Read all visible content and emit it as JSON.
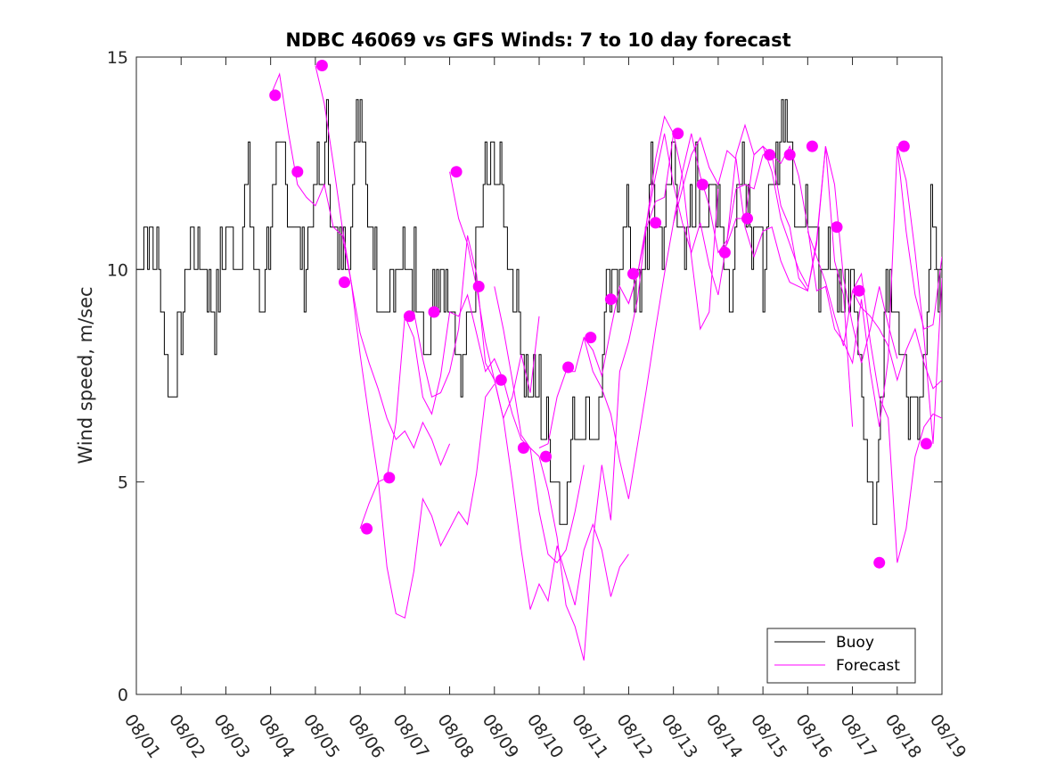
{
  "chart_data": {
    "type": "line",
    "title": "NDBC 46069 vs GFS Winds: 7 to 10 day forecast",
    "xlabel": "",
    "ylabel": "Wind speed, m/sec",
    "xlim": [
      0,
      18
    ],
    "ylim": [
      0,
      15
    ],
    "x_ticks": [
      0,
      1,
      2,
      3,
      4,
      5,
      6,
      7,
      8,
      9,
      10,
      11,
      12,
      13,
      14,
      15,
      16,
      17,
      18
    ],
    "x_tick_labels": [
      "08/01",
      "08/02",
      "08/03",
      "08/04",
      "08/05",
      "08/06",
      "08/07",
      "08/08",
      "08/09",
      "08/10",
      "08/11",
      "08/12",
      "08/13",
      "08/14",
      "08/15",
      "08/16",
      "08/17",
      "08/18",
      "08/19"
    ],
    "y_ticks": [
      0,
      5,
      10,
      15
    ],
    "y_tick_labels": [
      "0",
      "5",
      "10",
      "15"
    ],
    "legend": {
      "position": "bottom-right",
      "entries": [
        {
          "label": "Buoy",
          "color": "#000000"
        },
        {
          "label": "Forecast",
          "color": "#ff00ff"
        }
      ]
    },
    "series": [
      {
        "name": "Buoy",
        "color": "#000000",
        "x": [
          0,
          0.25,
          0.5,
          0.75,
          1.0,
          1.25,
          1.5,
          1.75,
          2.0,
          2.25,
          2.5,
          2.75,
          3.0,
          3.25,
          3.5,
          3.75,
          4.0,
          4.25,
          4.5,
          4.75,
          5.0,
          5.25,
          5.5,
          5.75,
          6.0,
          6.25,
          6.5,
          6.75,
          7.0,
          7.25,
          7.5,
          7.75,
          8.0,
          8.25,
          8.5,
          8.75,
          9.0,
          9.25,
          9.5,
          9.75,
          10.0,
          10.25,
          10.5,
          10.75,
          11.0,
          11.25,
          11.5,
          11.75,
          12.0,
          12.25,
          12.5,
          12.75,
          13.0,
          13.25,
          13.5,
          13.75,
          14.0,
          14.25,
          14.5,
          14.75,
          15.0,
          15.25,
          15.5,
          15.75,
          16.0,
          16.25,
          16.5,
          16.75,
          17.0,
          17.25,
          17.5,
          17.75,
          18.0
        ],
        "y": [
          10,
          11,
          10,
          7,
          9,
          11,
          10,
          9,
          11,
          10,
          12,
          9,
          11,
          13,
          11,
          10,
          12,
          13,
          10,
          11,
          14,
          11,
          9,
          10,
          10,
          10,
          8,
          10,
          9,
          7,
          9,
          12,
          13,
          11,
          9,
          7,
          7,
          6,
          4,
          6,
          7,
          6,
          9,
          10,
          11,
          9,
          12,
          11,
          13,
          10,
          12,
          11,
          12,
          9,
          13,
          11,
          10,
          12,
          14,
          11,
          12,
          10,
          11,
          9,
          10,
          6,
          4,
          10,
          9,
          7,
          6,
          11,
          9
        ]
      },
      {
        "name": "Forecast",
        "color": "#ff00ff",
        "segments": [
          {
            "x": [
              3.0,
              3.2,
              3.4,
              3.6,
              3.8,
              4.0,
              4.2,
              4.4,
              4.6,
              4.8,
              5.0,
              5.2,
              5.4,
              5.6,
              5.8,
              6.0,
              6.2,
              6.4,
              6.6,
              6.8,
              7.0
            ],
            "y": [
              14.1,
              14.6,
              13.2,
              12.0,
              11.7,
              11.5,
              12.0,
              11.0,
              10.8,
              9.7,
              8.5,
              7.8,
              7.2,
              6.5,
              6.0,
              6.2,
              5.8,
              6.4,
              6.0,
              5.4,
              5.9
            ]
          },
          {
            "x": [
              4.0,
              4.2,
              4.4,
              4.6,
              4.8,
              5.0,
              5.2,
              5.4,
              5.6,
              5.8,
              6.0,
              6.2,
              6.4,
              6.6,
              6.8,
              7.0,
              7.2,
              7.4,
              7.6,
              7.8,
              8.0
            ],
            "y": [
              14.8,
              13.9,
              12.5,
              11.0,
              9.7,
              8.0,
              6.5,
              5.1,
              3.0,
              1.9,
              1.8,
              2.9,
              4.6,
              4.2,
              3.5,
              3.9,
              4.3,
              4.0,
              5.2,
              7.0,
              7.3
            ]
          },
          {
            "x": [
              5.0,
              5.2,
              5.4,
              5.6,
              5.8,
              6.0,
              6.2,
              6.4,
              6.6,
              6.8,
              7.0,
              7.2,
              7.4,
              7.6,
              7.8,
              8.0,
              8.2,
              8.4,
              8.6,
              8.8,
              9.0
            ],
            "y": [
              3.9,
              4.5,
              5.0,
              5.1,
              6.4,
              8.9,
              9.0,
              7.9,
              7.0,
              7.1,
              7.6,
              8.6,
              10.8,
              9.9,
              7.8,
              7.4,
              6.5,
              7.0,
              8.0,
              7.1,
              8.9
            ]
          },
          {
            "x": [
              6.0,
              6.2,
              6.4,
              6.6,
              6.8,
              7.0,
              7.2,
              7.4,
              7.6,
              7.8,
              8.0,
              8.2,
              8.4,
              8.6,
              8.8,
              9.0,
              9.2,
              9.4,
              9.6,
              9.8,
              10.0
            ],
            "y": [
              8.9,
              8.4,
              7.0,
              6.6,
              7.5,
              9.0,
              8.9,
              9.4,
              8.5,
              7.6,
              7.9,
              7.4,
              6.6,
              6.0,
              5.8,
              4.3,
              3.3,
              3.1,
              3.4,
              4.3,
              5.4
            ]
          },
          {
            "x": [
              7.0,
              7.2,
              7.4,
              7.6,
              7.8,
              8.0,
              8.2,
              8.4,
              8.6,
              8.8,
              9.0,
              9.2,
              9.4,
              9.6,
              9.8,
              10.0,
              10.2,
              10.4,
              10.6,
              10.8,
              11.0
            ],
            "y": [
              12.3,
              11.2,
              10.6,
              9.6,
              8.3,
              7.4,
              6.5,
              5.0,
              3.4,
              2.0,
              2.6,
              2.2,
              3.5,
              2.8,
              2.1,
              3.4,
              4.0,
              3.4,
              2.3,
              3.0,
              3.3
            ]
          },
          {
            "x": [
              8.0,
              8.2,
              8.4,
              8.6,
              8.8,
              9.0,
              9.2,
              9.4,
              9.6,
              9.8,
              10.0,
              10.2,
              10.4,
              10.6,
              10.8,
              11.0,
              11.2,
              11.4,
              11.6,
              11.8,
              12.0
            ],
            "y": [
              9.6,
              8.6,
              7.4,
              6.1,
              5.8,
              5.6,
              4.8,
              3.7,
              2.1,
              1.6,
              0.8,
              3.6,
              5.4,
              4.1,
              7.6,
              8.3,
              9.3,
              11.1,
              12.6,
              13.6,
              13.2
            ]
          },
          {
            "x": [
              9.0,
              9.2,
              9.4,
              9.6,
              9.8,
              10.0,
              10.2,
              10.4,
              10.6,
              10.8,
              11.0,
              11.2,
              11.4,
              11.6,
              11.8,
              12.0,
              12.2,
              12.4,
              12.6,
              12.8,
              13.0
            ],
            "y": [
              5.8,
              5.9,
              7.0,
              7.6,
              7.6,
              8.4,
              8.1,
              7.5,
              8.6,
              9.6,
              9.2,
              9.9,
              11.0,
              11.6,
              11.7,
              13.2,
              12.2,
              10.3,
              8.6,
              9.0,
              11.9
            ]
          },
          {
            "x": [
              10.0,
              10.2,
              10.4,
              10.6,
              10.8,
              11.0,
              11.2,
              11.4,
              11.6,
              11.8,
              12.0,
              12.2,
              12.4,
              12.6,
              12.8,
              13.0,
              13.2,
              13.4,
              13.6,
              13.8,
              14.0
            ],
            "y": [
              8.4,
              7.6,
              7.2,
              6.6,
              5.5,
              4.6,
              5.9,
              7.2,
              8.6,
              9.9,
              11.1,
              12.3,
              13.2,
              12.2,
              11.5,
              10.4,
              10.7,
              11.9,
              12.0,
              11.9,
              12.7
            ]
          },
          {
            "x": [
              11.0,
              11.2,
              11.4,
              11.6,
              11.8,
              12.0,
              12.2,
              12.4,
              12.6,
              12.8,
              13.0,
              13.2,
              13.4,
              13.6,
              13.8,
              14.0,
              14.2,
              14.4,
              14.6,
              14.8,
              15.0
            ],
            "y": [
              9.2,
              9.9,
              11.1,
              12.2,
              13.2,
              12.0,
              11.1,
              10.4,
              11.1,
              10.1,
              9.4,
              10.7,
              12.7,
              13.4,
              12.7,
              12.9,
              12.3,
              11.2,
              10.6,
              10.0,
              9.6
            ]
          },
          {
            "x": [
              12.0,
              12.2,
              12.4,
              12.6,
              12.8,
              13.0,
              13.2,
              13.4,
              13.6,
              13.8,
              14.0,
              14.2,
              14.4,
              14.6,
              14.8,
              15.0,
              15.2,
              15.4,
              15.6,
              15.8,
              16.0
            ],
            "y": [
              11.1,
              11.9,
              12.7,
              13.1,
              12.4,
              12.0,
              12.8,
              12.6,
              11.0,
              10.3,
              10.9,
              11.0,
              10.2,
              9.7,
              9.6,
              9.5,
              10.6,
              12.9,
              10.2,
              9.4,
              6.3
            ]
          },
          {
            "x": [
              13.0,
              13.2,
              13.4,
              13.6,
              13.8,
              14.0,
              14.2,
              14.4,
              14.6,
              14.8,
              15.0,
              15.2,
              15.4,
              15.6,
              15.8,
              16.0,
              16.2,
              16.4,
              16.6,
              16.8,
              17.0
            ],
            "y": [
              10.4,
              10.6,
              11.2,
              11.2,
              12.7,
              12.9,
              12.7,
              11.5,
              11.0,
              9.8,
              9.5,
              10.7,
              12.9,
              12.0,
              9.8,
              8.7,
              7.8,
              8.6,
              9.6,
              8.7,
              7.9
            ]
          },
          {
            "x": [
              14.0,
              14.2,
              14.4,
              14.6,
              14.8,
              15.0,
              15.2,
              15.4,
              15.6,
              15.8,
              16.0,
              16.2,
              16.4,
              16.6,
              16.8,
              17.0,
              17.2,
              17.4,
              17.6,
              17.8,
              18.0
            ],
            "y": [
              12.7,
              12.7,
              12.5,
              12.9,
              12.2,
              11.0,
              9.5,
              9.6,
              8.6,
              8.3,
              7.8,
              9.3,
              7.6,
              6.3,
              7.9,
              12.9,
              10.9,
              9.4,
              8.6,
              8.7,
              10.3
            ]
          },
          {
            "x": [
              15.0,
              15.2,
              15.4,
              15.6,
              15.8,
              16.0,
              16.2,
              16.4,
              16.6,
              16.8,
              17.0,
              17.2,
              17.4,
              17.6,
              17.8,
              18.0
            ],
            "y": [
              10.9,
              10.3,
              9.7,
              8.9,
              8.2,
              9.5,
              9.9,
              8.3,
              7.0,
              6.5,
              3.1,
              3.9,
              5.6,
              6.3,
              6.6,
              6.5
            ]
          },
          {
            "x": [
              16.0,
              16.2,
              16.4,
              16.6,
              16.8,
              17.0,
              17.2,
              17.4,
              17.6,
              17.8,
              18.0
            ],
            "y": [
              9.5,
              9.1,
              8.9,
              8.6,
              8.2,
              7.4,
              8.1,
              8.6,
              7.8,
              7.2,
              7.4
            ]
          },
          {
            "x": [
              17.0,
              17.2,
              17.4,
              17.6,
              17.8,
              18.0
            ],
            "y": [
              12.9,
              12.1,
              10.4,
              8.4,
              5.9,
              9.8
            ]
          }
        ],
        "markers": {
          "x": [
            3.1,
            3.6,
            4.15,
            4.65,
            5.15,
            5.65,
            6.1,
            6.65,
            7.15,
            7.65,
            8.15,
            8.65,
            9.15,
            9.65,
            10.15,
            10.6,
            11.1,
            11.6,
            12.1,
            12.65,
            13.15,
            13.65,
            14.15,
            14.6,
            15.1,
            15.65,
            16.15,
            16.6,
            17.15,
            17.65
          ],
          "y": [
            14.1,
            12.3,
            14.8,
            9.7,
            3.9,
            5.1,
            8.9,
            9.0,
            12.3,
            9.6,
            7.4,
            5.8,
            5.6,
            7.7,
            8.4,
            9.3,
            9.9,
            11.1,
            13.2,
            12.0,
            10.4,
            11.2,
            12.7,
            12.7,
            12.9,
            11.0,
            9.5,
            3.1,
            12.9,
            5.9
          ]
        }
      }
    ]
  }
}
